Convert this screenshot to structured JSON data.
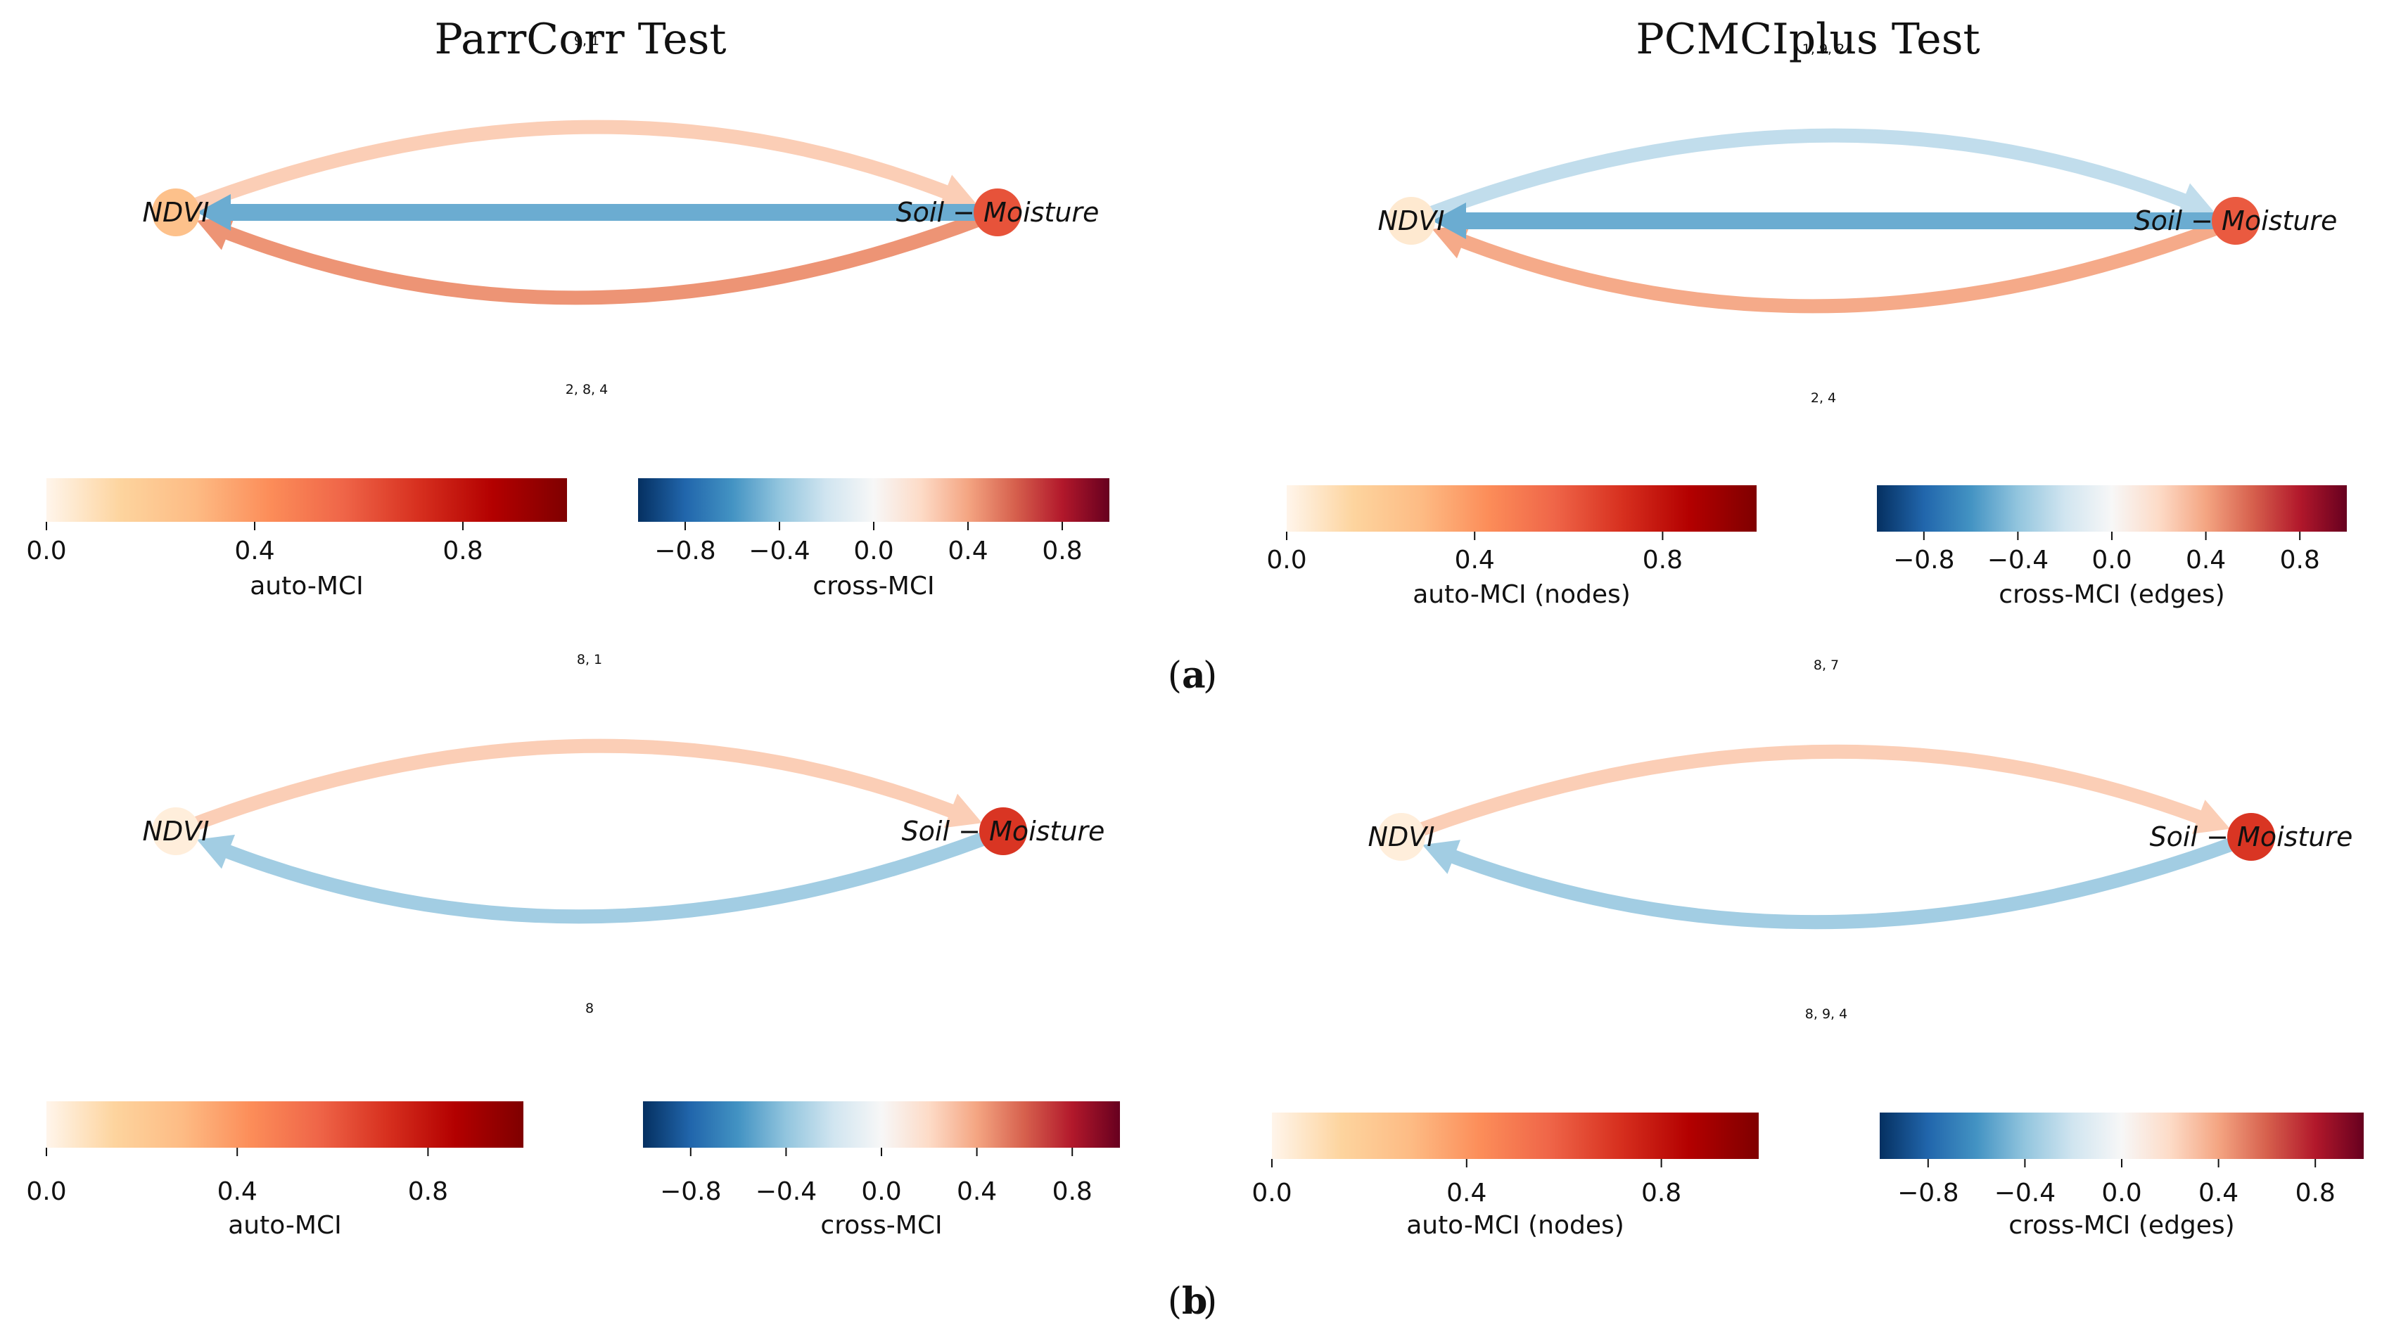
{
  "colors": {
    "node_colormap": [
      "#fff5eb",
      "#fdd49e",
      "#fdbb84",
      "#fc8d59",
      "#ef6548",
      "#d7301f",
      "#b30000",
      "#7f0000"
    ],
    "edge_colormap": [
      "#053061",
      "#2166ac",
      "#4393c3",
      "#92c5de",
      "#d1e5f0",
      "#f7f7f7",
      "#fddbc7",
      "#f4a582",
      "#d6604d",
      "#b2182b",
      "#67001f"
    ]
  },
  "panel_labels": {
    "a": "a",
    "b": "b"
  },
  "graphs": [
    {
      "title": "ParrCorr Test",
      "nodes": [
        {
          "label": "NDVI",
          "auto_mci": 0.25
        },
        {
          "label": "Soil − Moisture",
          "auto_mci": 0.62
        }
      ],
      "edges": [
        {
          "from": "NDVI",
          "to": "Soil − Moisture",
          "lags": "9, 1",
          "cross_mci": 0.25
        },
        {
          "from": "Soil − Moisture",
          "to": "NDVI",
          "lags": "2, 8, 4",
          "cross_mci": 0.45
        },
        {
          "from": "Soil − Moisture",
          "to": "NDVI",
          "lags": "",
          "cross_mci": -0.5
        }
      ],
      "node_colorbar": {
        "label": "auto-MCI",
        "ticks": [
          "0.0",
          "0.4",
          "0.8"
        ]
      },
      "edge_colorbar": {
        "label": "cross-MCI",
        "ticks": [
          "−0.8",
          "−0.4",
          "0.0",
          "0.4",
          "0.8"
        ]
      }
    },
    {
      "title": "PCMCIplus Test",
      "nodes": [
        {
          "label": "NDVI",
          "auto_mci": 0.05
        },
        {
          "label": "Soil − Moisture",
          "auto_mci": 0.6
        }
      ],
      "edges": [
        {
          "from": "NDVI",
          "to": "Soil − Moisture",
          "lags": "1, 9, 2",
          "cross_mci": -0.25
        },
        {
          "from": "Soil − Moisture",
          "to": "NDVI",
          "lags": "2, 4",
          "cross_mci": 0.38
        },
        {
          "from": "Soil − Moisture",
          "to": "NDVI",
          "lags": "",
          "cross_mci": -0.5
        }
      ],
      "node_colorbar": {
        "label": "auto-MCI (nodes)",
        "ticks": [
          "0.0",
          "0.4",
          "0.8"
        ]
      },
      "edge_colorbar": {
        "label": "cross-MCI (edges)",
        "ticks": [
          "−0.8",
          "−0.4",
          "0.0",
          "0.4",
          "0.8"
        ]
      }
    },
    {
      "title": "",
      "nodes": [
        {
          "label": "NDVI",
          "auto_mci": 0.03
        },
        {
          "label": "Soil − Moisture",
          "auto_mci": 0.7
        }
      ],
      "edges": [
        {
          "from": "NDVI",
          "to": "Soil − Moisture",
          "lags": "8, 1",
          "cross_mci": 0.25
        },
        {
          "from": "Soil − Moisture",
          "to": "NDVI",
          "lags": "8",
          "cross_mci": -0.35
        }
      ],
      "node_colorbar": {
        "label": "auto-MCI",
        "ticks": [
          "0.0",
          "0.4",
          "0.8"
        ]
      },
      "edge_colorbar": {
        "label": "cross-MCI",
        "ticks": [
          "−0.8",
          "−0.4",
          "0.0",
          "0.4",
          "0.8"
        ]
      }
    },
    {
      "title": "",
      "nodes": [
        {
          "label": "NDVI",
          "auto_mci": 0.03
        },
        {
          "label": "Soil − Moisture",
          "auto_mci": 0.7
        }
      ],
      "edges": [
        {
          "from": "NDVI",
          "to": "Soil − Moisture",
          "lags": "8, 7",
          "cross_mci": 0.25
        },
        {
          "from": "Soil − Moisture",
          "to": "NDVI",
          "lags": "8, 9, 4",
          "cross_mci": -0.35
        }
      ],
      "node_colorbar": {
        "label": "auto-MCI (nodes)",
        "ticks": [
          "0.0",
          "0.4",
          "0.8"
        ]
      },
      "edge_colorbar": {
        "label": "cross-MCI (edges)",
        "ticks": [
          "−0.8",
          "−0.4",
          "0.0",
          "0.4",
          "0.8"
        ]
      }
    }
  ]
}
